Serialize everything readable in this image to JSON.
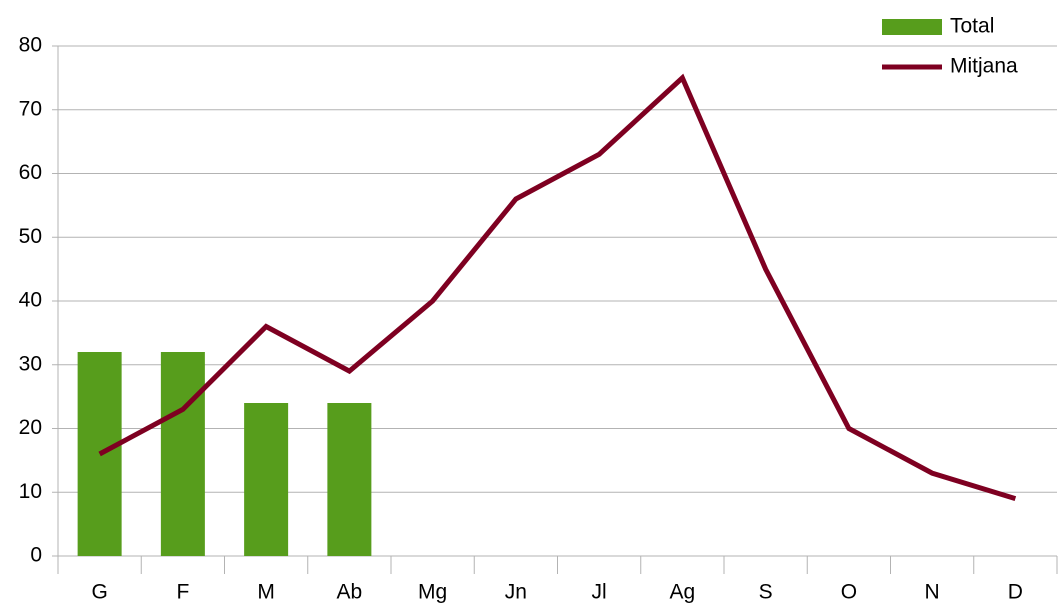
{
  "chart_data": {
    "type": "bar",
    "categories": [
      "G",
      "F",
      "M",
      "Ab",
      "Mg",
      "Jn",
      "Jl",
      "Ag",
      "S",
      "O",
      "N",
      "D"
    ],
    "series": [
      {
        "name": "Total",
        "type": "bar",
        "color": "#579d1c",
        "values": [
          32,
          32,
          24,
          24,
          null,
          null,
          null,
          null,
          null,
          null,
          null,
          null
        ]
      },
      {
        "name": "Mitjana",
        "type": "line",
        "color": "#7e0021",
        "values": [
          16,
          23,
          36,
          29,
          40,
          56,
          63,
          75,
          45,
          20,
          13,
          9
        ]
      }
    ],
    "ylim": [
      0,
      80
    ],
    "yticks": [
      0,
      10,
      20,
      30,
      40,
      50,
      60,
      70,
      80
    ],
    "grid": true,
    "legend": "top-right"
  }
}
